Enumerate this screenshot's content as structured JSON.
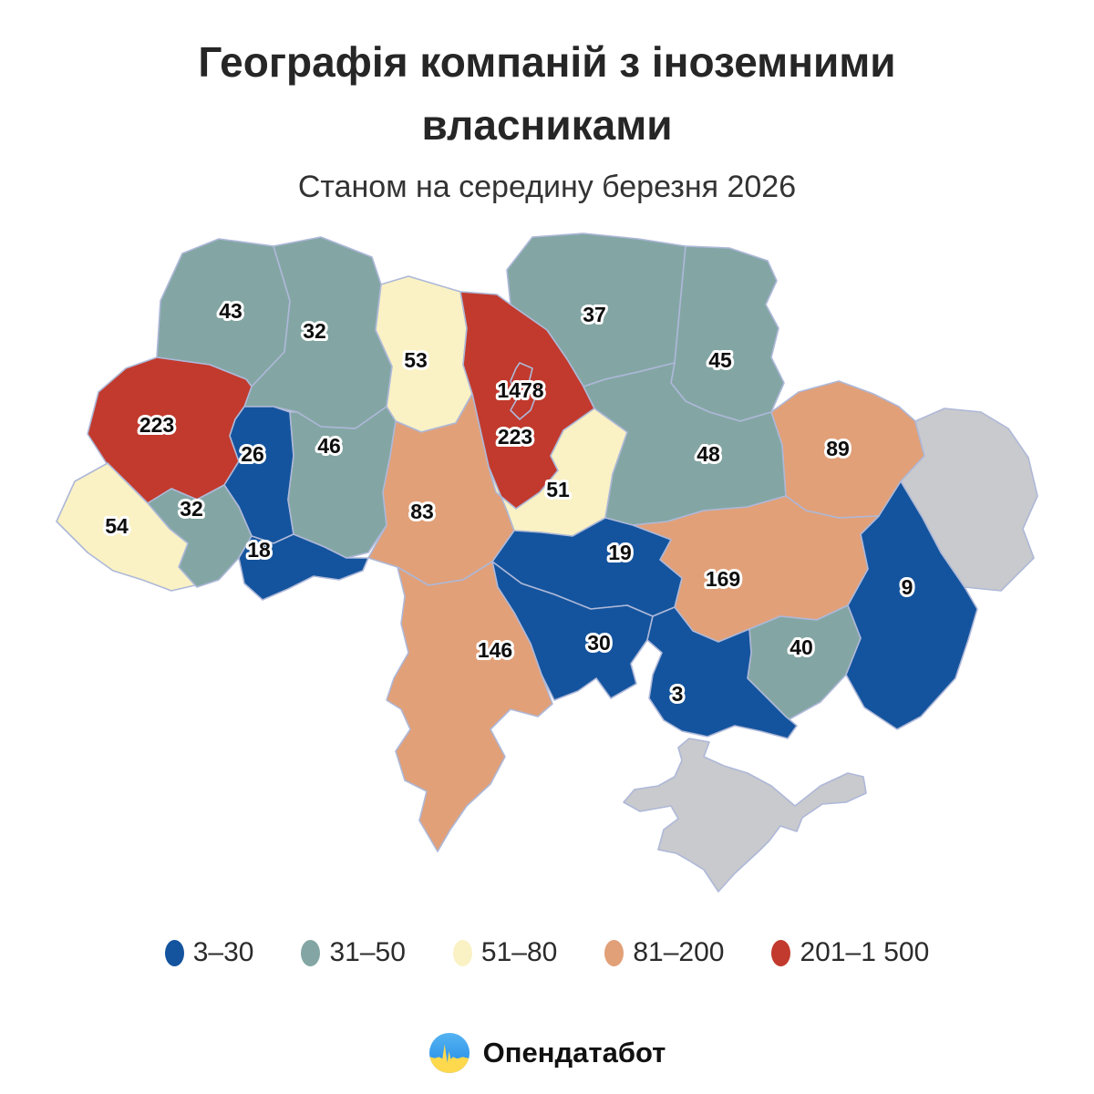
{
  "chart_data": {
    "type": "choropleth",
    "title": "Географія компаній з іноземними власниками",
    "subtitle": "Станом на середину березня 2026",
    "map_of": "Ukraine oblasts",
    "legend_position": "bottom",
    "no_data_color": "#C9CACD",
    "border_color": "#AEB8D8",
    "label_color": "#0d0d0d",
    "label_halo_color": "#FFFFFF",
    "legend": [
      {
        "label": "3–30",
        "color": "#14549E"
      },
      {
        "label": "31–50",
        "color": "#83A6A4"
      },
      {
        "label": "51–80",
        "color": "#FAF2C4"
      },
      {
        "label": "81–200",
        "color": "#E1A078"
      },
      {
        "label": "201–1 500",
        "color": "#C13A2D"
      }
    ],
    "regions": [
      {
        "id": "volyn",
        "value": 43,
        "bin": 1
      },
      {
        "id": "rivne",
        "value": 32,
        "bin": 1
      },
      {
        "id": "zhytomyr",
        "value": 53,
        "bin": 2
      },
      {
        "id": "chernihiv",
        "value": 37,
        "bin": 1
      },
      {
        "id": "sumy",
        "value": 45,
        "bin": 1
      },
      {
        "id": "kyiv-oblast",
        "value": 223,
        "bin": 4
      },
      {
        "id": "kyiv-city",
        "value": 1478,
        "bin": 4
      },
      {
        "id": "lviv",
        "value": 223,
        "bin": 4
      },
      {
        "id": "ternopil",
        "value": 26,
        "bin": 0
      },
      {
        "id": "khmelnytskyi",
        "value": 46,
        "bin": 1
      },
      {
        "id": "ivano-frankivsk",
        "value": 32,
        "bin": 1
      },
      {
        "id": "zakarpattia",
        "value": 54,
        "bin": 2
      },
      {
        "id": "chernivtsi",
        "value": 18,
        "bin": 0
      },
      {
        "id": "vinnytsia",
        "value": 83,
        "bin": 3
      },
      {
        "id": "cherkasy",
        "value": 51,
        "bin": 2
      },
      {
        "id": "poltava",
        "value": 48,
        "bin": 1
      },
      {
        "id": "kharkiv",
        "value": 89,
        "bin": 3
      },
      {
        "id": "luhansk",
        "value": null,
        "bin": null
      },
      {
        "id": "donetsk",
        "value": 9,
        "bin": 0
      },
      {
        "id": "dnipro",
        "value": 169,
        "bin": 3
      },
      {
        "id": "zaporizhzhia",
        "value": 40,
        "bin": 1
      },
      {
        "id": "kirovohrad",
        "value": 19,
        "bin": 0
      },
      {
        "id": "mykolaiv",
        "value": 30,
        "bin": 0
      },
      {
        "id": "kherson",
        "value": 3,
        "bin": 0
      },
      {
        "id": "odesa",
        "value": 146,
        "bin": 3
      },
      {
        "id": "crimea",
        "value": null,
        "bin": null
      }
    ]
  },
  "footer": {
    "brand": "Опендатабот"
  },
  "logo": {
    "top_color": "#3FA3EF",
    "top_color_dark": "#1E88E5",
    "bottom_color": "#FFD94D"
  }
}
